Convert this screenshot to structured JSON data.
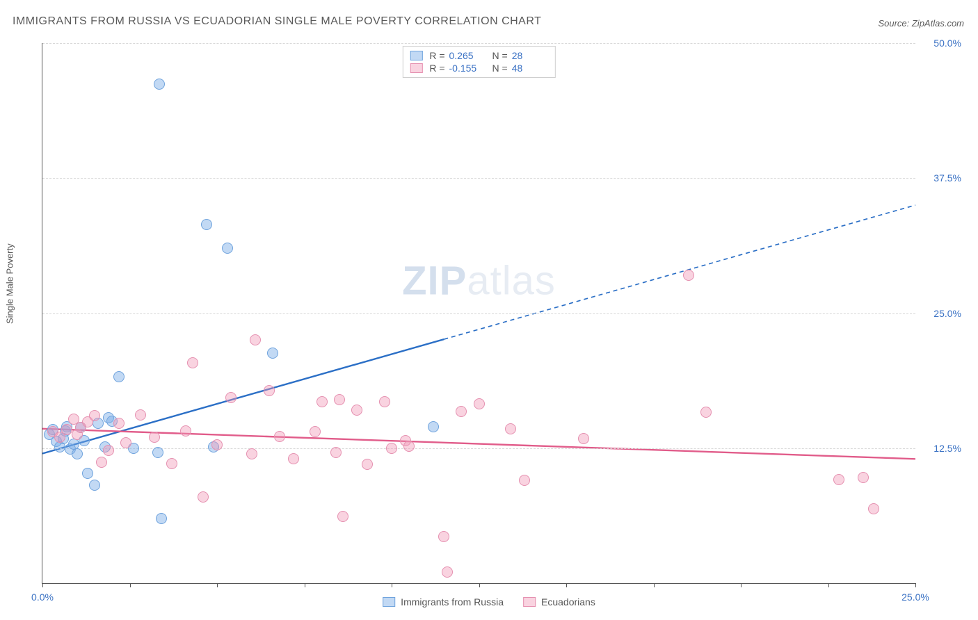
{
  "title": "IMMIGRANTS FROM RUSSIA VS ECUADORIAN SINGLE MALE POVERTY CORRELATION CHART",
  "source": "Source: ZipAtlas.com",
  "watermark": {
    "bold": "ZIP",
    "rest": "atlas"
  },
  "chart": {
    "type": "scatter",
    "background_color": "#ffffff",
    "grid_color": "#d8d8d8",
    "axis_color": "#555555",
    "ylabel": "Single Male Poverty",
    "xlim": [
      0,
      25
    ],
    "ylim": [
      0,
      50
    ],
    "xticks": [
      0,
      2.5,
      5,
      7.5,
      10,
      12.5,
      15,
      17.5,
      20,
      22.5,
      25
    ],
    "xtick_labels": {
      "0": "0.0%",
      "25": "25.0%"
    },
    "yticks": [
      12.5,
      25.0,
      37.5,
      50.0
    ],
    "ytick_labels": [
      "12.5%",
      "25.0%",
      "37.5%",
      "50.0%"
    ],
    "marker_radius": 8,
    "series": [
      {
        "name": "Immigrants from Russia",
        "color_fill": "rgba(120,170,230,0.45)",
        "color_stroke": "#6fa3dd",
        "trend_color": "#2b6fc6",
        "trend_width": 2.4,
        "trend_solid_to_x": 11.5,
        "R": "0.265",
        "N": "28",
        "trend": {
          "x1": 0,
          "y1": 12.0,
          "x2": 25,
          "y2": 35.0
        },
        "points": [
          [
            0.2,
            13.8
          ],
          [
            0.3,
            14.2
          ],
          [
            0.4,
            13.1
          ],
          [
            0.5,
            12.6
          ],
          [
            0.6,
            13.4
          ],
          [
            0.65,
            14.1
          ],
          [
            0.7,
            14.5
          ],
          [
            0.8,
            12.4
          ],
          [
            0.9,
            12.9
          ],
          [
            1.0,
            12.0
          ],
          [
            1.1,
            14.4
          ],
          [
            1.2,
            13.2
          ],
          [
            1.3,
            10.2
          ],
          [
            1.5,
            9.1
          ],
          [
            1.6,
            14.8
          ],
          [
            1.8,
            12.6
          ],
          [
            1.9,
            15.3
          ],
          [
            2.0,
            15.0
          ],
          [
            2.2,
            19.1
          ],
          [
            2.6,
            12.5
          ],
          [
            3.3,
            12.1
          ],
          [
            3.35,
            46.2
          ],
          [
            3.4,
            6.0
          ],
          [
            4.7,
            33.2
          ],
          [
            4.9,
            12.6
          ],
          [
            5.3,
            31.0
          ],
          [
            6.6,
            21.3
          ],
          [
            11.2,
            14.5
          ]
        ]
      },
      {
        "name": "Ecuadorians",
        "color_fill": "rgba(240,150,180,0.42)",
        "color_stroke": "#e590b0",
        "trend_color": "#e15c8a",
        "trend_width": 2.4,
        "trend_solid_to_x": 25,
        "R": "-0.155",
        "N": "48",
        "trend": {
          "x1": 0,
          "y1": 14.3,
          "x2": 25,
          "y2": 11.5
        },
        "points": [
          [
            0.3,
            14.0
          ],
          [
            0.5,
            13.5
          ],
          [
            0.7,
            14.2
          ],
          [
            0.9,
            15.2
          ],
          [
            1.0,
            13.8
          ],
          [
            1.1,
            14.4
          ],
          [
            1.3,
            14.9
          ],
          [
            1.5,
            15.5
          ],
          [
            1.7,
            11.2
          ],
          [
            1.9,
            12.3
          ],
          [
            2.2,
            14.8
          ],
          [
            2.4,
            13.0
          ],
          [
            2.8,
            15.6
          ],
          [
            3.2,
            13.5
          ],
          [
            3.7,
            11.1
          ],
          [
            4.1,
            14.1
          ],
          [
            4.3,
            20.4
          ],
          [
            4.6,
            8.0
          ],
          [
            5.0,
            12.8
          ],
          [
            5.4,
            17.2
          ],
          [
            6.0,
            12.0
          ],
          [
            6.1,
            22.5
          ],
          [
            6.5,
            17.8
          ],
          [
            6.8,
            13.6
          ],
          [
            7.2,
            11.5
          ],
          [
            7.8,
            14.0
          ],
          [
            8.0,
            16.8
          ],
          [
            8.4,
            12.1
          ],
          [
            8.5,
            17.0
          ],
          [
            8.6,
            6.2
          ],
          [
            9.0,
            16.0
          ],
          [
            9.3,
            11.0
          ],
          [
            9.8,
            16.8
          ],
          [
            10.0,
            12.5
          ],
          [
            10.4,
            13.2
          ],
          [
            10.5,
            12.7
          ],
          [
            11.5,
            4.3
          ],
          [
            11.6,
            1.0
          ],
          [
            12.0,
            15.9
          ],
          [
            12.5,
            16.6
          ],
          [
            13.4,
            14.3
          ],
          [
            13.8,
            9.5
          ],
          [
            15.5,
            13.4
          ],
          [
            18.5,
            28.5
          ],
          [
            19.0,
            15.8
          ],
          [
            22.8,
            9.6
          ],
          [
            23.5,
            9.8
          ],
          [
            23.8,
            6.9
          ]
        ]
      }
    ],
    "top_legend_labels": {
      "R": "R =",
      "N": "N ="
    },
    "bottom_legend": [
      "Immigrants from Russia",
      "Ecuadorians"
    ]
  }
}
